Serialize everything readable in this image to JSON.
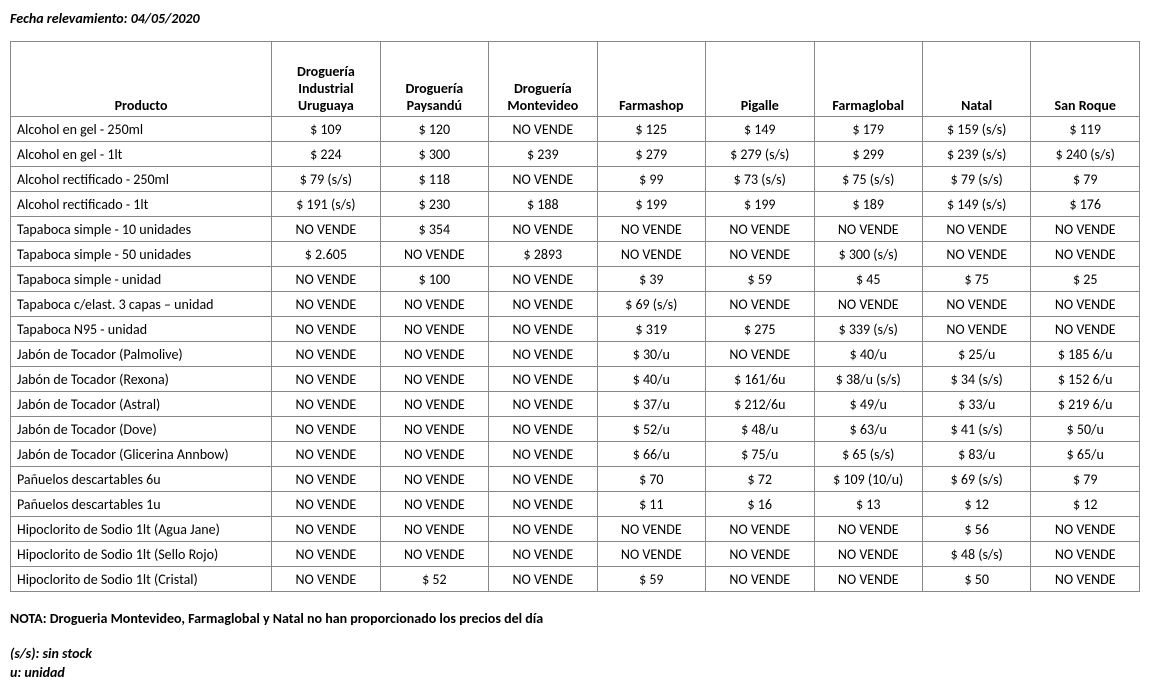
{
  "dateLine": "Fecha relevamiento: 04/05/2020",
  "table": {
    "productHeader": "Producto",
    "productColWidth": 260,
    "vendorColWidth": 108,
    "vendors": [
      "Droguería Industrial Uruguaya",
      "Droguería Paysandú",
      "Droguería Montevideo",
      "Farmashop",
      "Pigalle",
      "Farmaglobal",
      "Natal",
      "San Roque"
    ],
    "rows": [
      {
        "product": "Alcohol en gel  - 250ml",
        "values": [
          "$ 109",
          "$ 120",
          "NO VENDE",
          "$ 125",
          "$ 149",
          "$ 179",
          "$ 159 (s/s)",
          "$ 119"
        ]
      },
      {
        "product": "Alcohol en gel  - 1lt",
        "values": [
          "$ 224",
          "$ 300",
          "$ 239",
          "$ 279",
          "$ 279 (s/s)",
          "$ 299",
          "$ 239 (s/s)",
          "$ 240 (s/s)"
        ]
      },
      {
        "product": "Alcohol rectificado - 250ml",
        "values": [
          "$ 79 (s/s)",
          "$ 118",
          "NO VENDE",
          "$ 99",
          "$ 73 (s/s)",
          "$ 75 (s/s)",
          "$ 79 (s/s)",
          "$ 79"
        ]
      },
      {
        "product": "Alcohol rectificado - 1lt",
        "values": [
          "$ 191 (s/s)",
          "$ 230",
          "$ 188",
          "$ 199",
          "$ 199",
          "$ 189",
          "$ 149 (s/s)",
          "$ 176"
        ]
      },
      {
        "product": "Tapaboca simple - 10 unidades",
        "values": [
          "NO VENDE",
          "$ 354",
          "NO VENDE",
          "NO VENDE",
          "NO VENDE",
          "NO VENDE",
          "NO VENDE",
          "NO VENDE"
        ]
      },
      {
        "product": "Tapaboca simple - 50 unidades",
        "values": [
          "$ 2.605",
          "NO VENDE",
          "$ 2893",
          "NO VENDE",
          "NO VENDE",
          "$ 300 (s/s)",
          "NO VENDE",
          "NO VENDE"
        ]
      },
      {
        "product": "Tapaboca simple - unidad",
        "values": [
          "NO VENDE",
          "$ 100",
          "NO VENDE",
          "$ 39",
          "$ 59",
          "$ 45",
          "$ 75",
          "$ 25"
        ]
      },
      {
        "product": "Tapaboca c/elast. 3 capas – unidad",
        "values": [
          "NO VENDE",
          "NO VENDE",
          "NO VENDE",
          "$ 69 (s/s)",
          "NO VENDE",
          "NO VENDE",
          "NO VENDE",
          "NO VENDE"
        ]
      },
      {
        "product": "Tapaboca N95 - unidad",
        "values": [
          "NO VENDE",
          "NO VENDE",
          "NO VENDE",
          "$ 319",
          "$ 275",
          "$ 339 (s/s)",
          "NO VENDE",
          "NO VENDE"
        ]
      },
      {
        "product": "Jabón de Tocador (Palmolive)",
        "values": [
          "NO VENDE",
          "NO VENDE",
          "NO VENDE",
          "$ 30/u",
          "NO VENDE",
          "$ 40/u",
          "$ 25/u",
          "$ 185 6/u"
        ]
      },
      {
        "product": "Jabón de Tocador (Rexona)",
        "values": [
          "NO VENDE",
          "NO VENDE",
          "NO VENDE",
          "$ 40/u",
          "$ 161/6u",
          "$ 38/u (s/s)",
          "$ 34 (s/s)",
          "$ 152 6/u"
        ]
      },
      {
        "product": "Jabón de Tocador (Astral)",
        "values": [
          "NO VENDE",
          "NO VENDE",
          "NO VENDE",
          "$ 37/u",
          "$ 212/6u",
          "$ 49/u",
          "$ 33/u",
          "$ 219 6/u"
        ]
      },
      {
        "product": "Jabón de Tocador (Dove)",
        "values": [
          "NO VENDE",
          "NO VENDE",
          "NO VENDE",
          "$ 52/u",
          "$ 48/u",
          "$ 63/u",
          "$ 41 (s/s)",
          "$ 50/u"
        ]
      },
      {
        "product": "Jabón de Tocador (Glicerina Annbow)",
        "values": [
          "NO VENDE",
          "NO VENDE",
          "NO VENDE",
          "$ 66/u",
          "$ 75/u",
          "$ 65 (s/s)",
          "$ 83/u",
          "$ 65/u"
        ]
      },
      {
        "product": "Pañuelos descartables 6u",
        "values": [
          "NO VENDE",
          "NO VENDE",
          "NO VENDE",
          "$ 70",
          "$ 72",
          "$ 109 (10/u)",
          "$ 69 (s/s)",
          "$ 79"
        ]
      },
      {
        "product": "Pañuelos descartables 1u",
        "values": [
          "NO VENDE",
          "NO VENDE",
          "NO VENDE",
          "$ 11",
          "$ 16",
          "$ 13",
          "$ 12",
          "$ 12"
        ]
      },
      {
        "product": "Hipoclorito de Sodio 1lt (Agua Jane)",
        "values": [
          "NO VENDE",
          "NO VENDE",
          "NO VENDE",
          "NO VENDE",
          "NO VENDE",
          "NO VENDE",
          "$ 56",
          "NO VENDE"
        ]
      },
      {
        "product": "Hipoclorito de Sodio 1lt (Sello Rojo)",
        "values": [
          "NO VENDE",
          "NO VENDE",
          "NO VENDE",
          "NO VENDE",
          "NO VENDE",
          "NO VENDE",
          "$ 48 (s/s)",
          "NO VENDE"
        ]
      },
      {
        "product": "Hipoclorito de Sodio 1lt (Cristal)",
        "values": [
          "NO VENDE",
          "$ 52",
          "NO VENDE",
          "$ 59",
          "NO VENDE",
          "NO VENDE",
          "$ 50",
          "NO VENDE"
        ]
      }
    ]
  },
  "note": "NOTA: Drogueria Montevideo, Farmaglobal y Natal no han proporcionado los precios del día",
  "legend": {
    "ss": "(s/s): sin stock",
    "u": "u: unidad"
  }
}
